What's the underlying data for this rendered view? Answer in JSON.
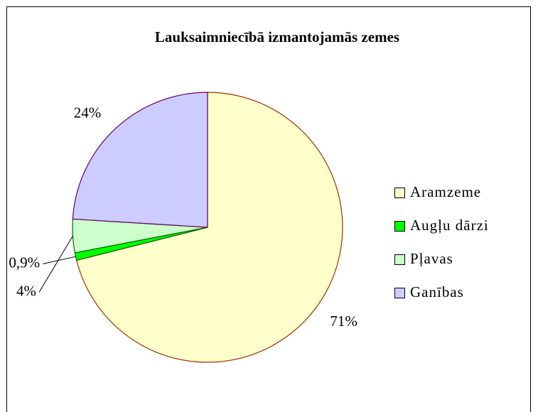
{
  "chart_data": {
    "type": "pie",
    "title": "Lauksaimniecībā izmantojamās zemes",
    "categories": [
      "Aramzeme",
      "Augļu dārzi",
      "Pļavas",
      "Ganības"
    ],
    "values": [
      71,
      0.9,
      4,
      24
    ],
    "value_labels": [
      "71%",
      "0,9%",
      "4%",
      "24%"
    ],
    "colors": [
      "#ffffcc",
      "#00ff00",
      "#ccffcc",
      "#ccccff"
    ],
    "legend": "right"
  }
}
